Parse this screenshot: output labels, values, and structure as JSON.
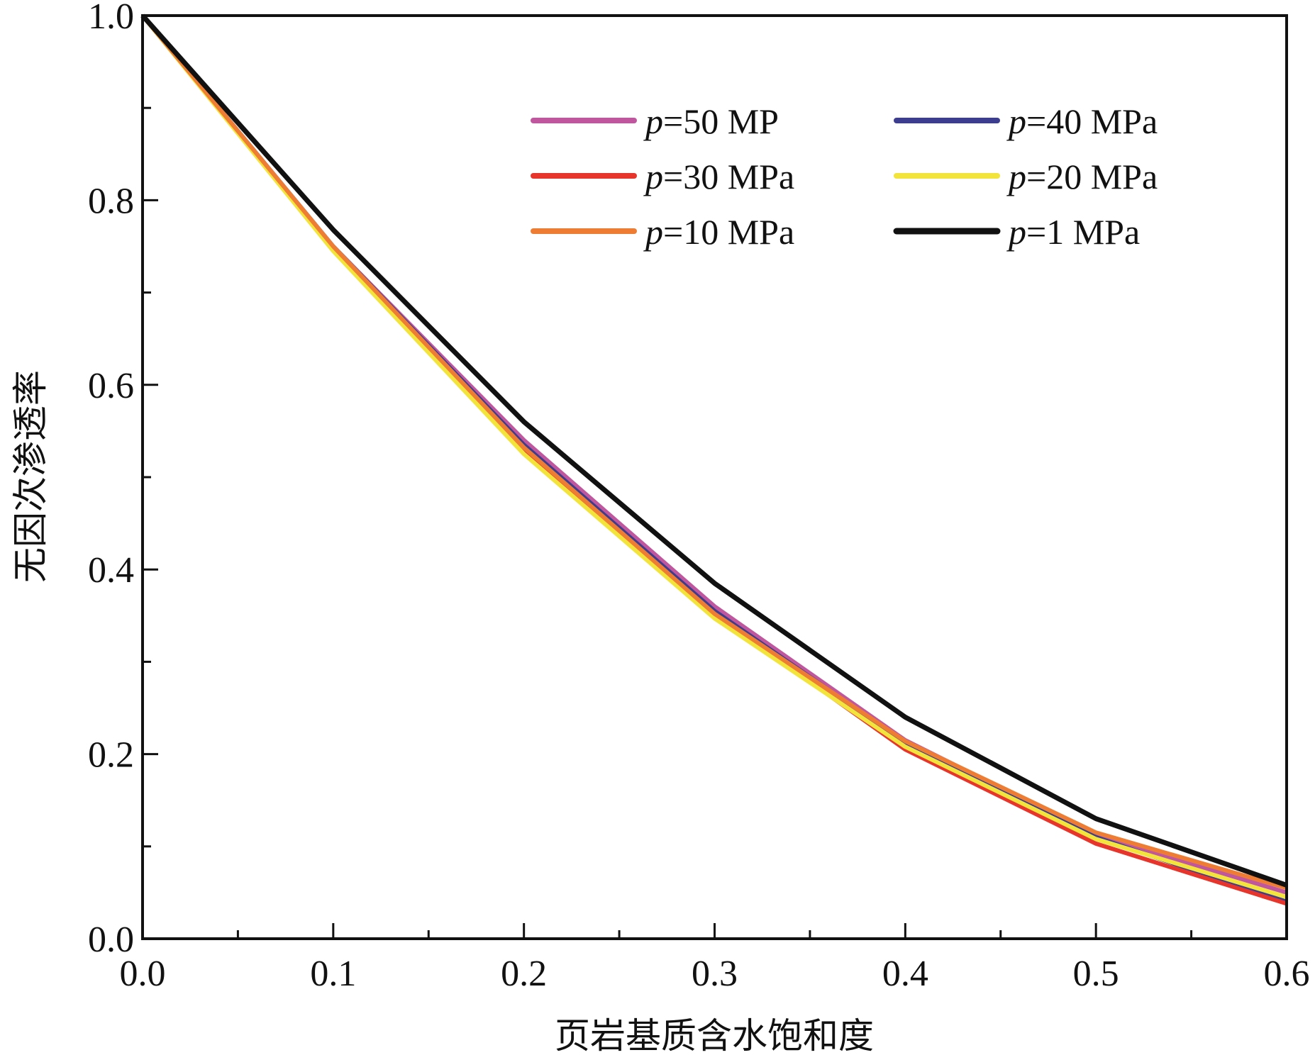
{
  "chart_data": {
    "type": "line",
    "title": "",
    "xlabel": "页岩基质含水饱和度",
    "ylabel": "无因次渗透率",
    "xlim": [
      0,
      0.6
    ],
    "ylim": [
      0,
      1.0
    ],
    "x_ticks": [
      "0.0",
      "0.1",
      "0.2",
      "0.3",
      "0.4",
      "0.5",
      "0.6"
    ],
    "y_ticks": [
      "0.0",
      "0.2",
      "0.4",
      "0.6",
      "0.8",
      "1.0"
    ],
    "x": [
      0,
      0.1,
      0.2,
      0.3,
      0.4,
      0.5,
      0.6
    ],
    "legend": "top-right, two columns",
    "series": [
      {
        "symbol": "p",
        "label": "=50 MP",
        "color": "#c0569e",
        "values": [
          1.0,
          0.75,
          0.54,
          0.36,
          0.215,
          0.112,
          0.05
        ]
      },
      {
        "symbol": "p",
        "label": "=40 MPa",
        "color": "#3d3d8f",
        "values": [
          1.0,
          0.75,
          0.535,
          0.355,
          0.212,
          0.11,
          0.04
        ]
      },
      {
        "symbol": "p",
        "label": "=30 MPa",
        "color": "#e8352b",
        "values": [
          1.0,
          0.748,
          0.53,
          0.352,
          0.205,
          0.103,
          0.038
        ]
      },
      {
        "symbol": "p",
        "label": "=20 MPa",
        "color": "#f2e43a",
        "values": [
          1.0,
          0.745,
          0.525,
          0.347,
          0.208,
          0.108,
          0.045
        ]
      },
      {
        "symbol": "p",
        "label": "=10 MPa",
        "color": "#ee7d33",
        "values": [
          1.0,
          0.75,
          0.532,
          0.352,
          0.214,
          0.115,
          0.055
        ]
      },
      {
        "symbol": "p",
        "label": "=1 MPa",
        "color": "#111111",
        "values": [
          1.0,
          0.768,
          0.56,
          0.385,
          0.24,
          0.13,
          0.058
        ]
      }
    ]
  }
}
